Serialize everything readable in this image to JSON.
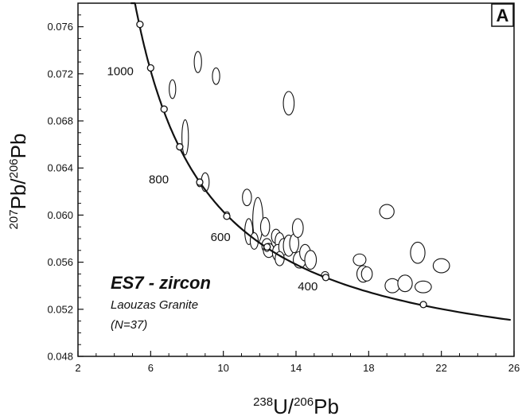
{
  "chart_data": {
    "type": "scatter",
    "panel_label": "A",
    "xlabel": {
      "sup": "238",
      "main1": "U/",
      "sup2": "206",
      "main2": "Pb"
    },
    "ylabel": {
      "sup": "207",
      "main1": "Pb/",
      "sup2": "206",
      "main2": "Pb"
    },
    "xlim": [
      2,
      26
    ],
    "ylim": [
      0.048,
      0.078
    ],
    "x_ticks": [
      2,
      6,
      10,
      14,
      18,
      22,
      26
    ],
    "y_ticks": [
      0.048,
      0.052,
      0.056,
      0.06,
      0.064,
      0.068,
      0.072,
      0.076
    ],
    "x_tick_labels": [
      "2",
      "6",
      "10",
      "14",
      "18",
      "22",
      "26"
    ],
    "y_tick_labels": [
      "0.048",
      "0.052",
      "0.056",
      "0.060",
      "0.064",
      "0.068",
      "0.072",
      "0.076"
    ],
    "annotation_title": "ES7 - zircon",
    "annotation_lines": [
      "Laouzas Granite",
      "(N=37)"
    ],
    "concordia_markers": [
      {
        "x": 5.41,
        "y": 0.0762
      },
      {
        "x": 6.0,
        "y": 0.0725
      },
      {
        "x": 6.74,
        "y": 0.069
      },
      {
        "x": 7.6,
        "y": 0.0658
      },
      {
        "x": 8.7,
        "y": 0.0628
      },
      {
        "x": 10.19,
        "y": 0.0599
      },
      {
        "x": 12.41,
        "y": 0.0573
      },
      {
        "x": 15.64,
        "y": 0.0547
      },
      {
        "x": 21.01,
        "y": 0.0524
      }
    ],
    "age_labels": [
      {
        "text": "1000",
        "x": 3.6,
        "y": 0.0719
      },
      {
        "text": "800",
        "x": 5.9,
        "y": 0.0627
      },
      {
        "text": "600",
        "x": 9.3,
        "y": 0.0578
      },
      {
        "text": "400",
        "x": 14.1,
        "y": 0.0536
      }
    ],
    "ellipses": [
      {
        "x": 8.6,
        "y": 0.073,
        "rx": 0.2,
        "ry": 0.0009
      },
      {
        "x": 9.6,
        "y": 0.0718,
        "rx": 0.2,
        "ry": 0.0007
      },
      {
        "x": 7.2,
        "y": 0.0707,
        "rx": 0.18,
        "ry": 0.0008
      },
      {
        "x": 13.6,
        "y": 0.0695,
        "rx": 0.3,
        "ry": 0.001
      },
      {
        "x": 7.9,
        "y": 0.0666,
        "rx": 0.18,
        "ry": 0.0015
      },
      {
        "x": 9.0,
        "y": 0.0628,
        "rx": 0.22,
        "ry": 0.0008
      },
      {
        "x": 11.3,
        "y": 0.0615,
        "rx": 0.25,
        "ry": 0.0007
      },
      {
        "x": 11.9,
        "y": 0.0596,
        "rx": 0.28,
        "ry": 0.0019
      },
      {
        "x": 11.4,
        "y": 0.0586,
        "rx": 0.22,
        "ry": 0.0011
      },
      {
        "x": 12.3,
        "y": 0.059,
        "rx": 0.25,
        "ry": 0.0008
      },
      {
        "x": 11.7,
        "y": 0.0578,
        "rx": 0.22,
        "ry": 0.0007
      },
      {
        "x": 12.4,
        "y": 0.0574,
        "rx": 0.28,
        "ry": 0.0006
      },
      {
        "x": 12.5,
        "y": 0.057,
        "rx": 0.3,
        "ry": 0.0006
      },
      {
        "x": 12.9,
        "y": 0.0582,
        "rx": 0.25,
        "ry": 0.0006
      },
      {
        "x": 13.1,
        "y": 0.0578,
        "rx": 0.25,
        "ry": 0.0007
      },
      {
        "x": 13.0,
        "y": 0.0568,
        "rx": 0.3,
        "ry": 0.0007
      },
      {
        "x": 13.3,
        "y": 0.0573,
        "rx": 0.25,
        "ry": 0.0007
      },
      {
        "x": 13.6,
        "y": 0.0574,
        "rx": 0.3,
        "ry": 0.0009
      },
      {
        "x": 13.9,
        "y": 0.0576,
        "rx": 0.25,
        "ry": 0.0008
      },
      {
        "x": 13.1,
        "y": 0.0563,
        "rx": 0.25,
        "ry": 0.0006
      },
      {
        "x": 14.1,
        "y": 0.0589,
        "rx": 0.3,
        "ry": 0.0008
      },
      {
        "x": 14.2,
        "y": 0.0562,
        "rx": 0.35,
        "ry": 0.0007
      },
      {
        "x": 14.5,
        "y": 0.0568,
        "rx": 0.3,
        "ry": 0.0007
      },
      {
        "x": 14.8,
        "y": 0.0562,
        "rx": 0.32,
        "ry": 0.0008
      },
      {
        "x": 17.5,
        "y": 0.0562,
        "rx": 0.35,
        "ry": 0.0005
      },
      {
        "x": 17.7,
        "y": 0.055,
        "rx": 0.35,
        "ry": 0.0007
      },
      {
        "x": 17.9,
        "y": 0.055,
        "rx": 0.3,
        "ry": 0.0006
      },
      {
        "x": 19.0,
        "y": 0.0603,
        "rx": 0.4,
        "ry": 0.0006
      },
      {
        "x": 19.3,
        "y": 0.054,
        "rx": 0.4,
        "ry": 0.0006
      },
      {
        "x": 20.0,
        "y": 0.0542,
        "rx": 0.4,
        "ry": 0.0007
      },
      {
        "x": 20.7,
        "y": 0.0568,
        "rx": 0.4,
        "ry": 0.0009
      },
      {
        "x": 21.0,
        "y": 0.0539,
        "rx": 0.45,
        "ry": 0.0005
      },
      {
        "x": 22.0,
        "y": 0.0557,
        "rx": 0.45,
        "ry": 0.0006
      },
      {
        "x": 15.6,
        "y": 0.0549,
        "rx": 0.2,
        "ry": 0.0003
      },
      {
        "x": 10.2,
        "y": 0.06,
        "rx": 0.15,
        "ry": 0.0003
      },
      {
        "x": 8.7,
        "y": 0.0627,
        "rx": 0.15,
        "ry": 0.0003
      },
      {
        "x": 12.4,
        "y": 0.0572,
        "rx": 0.15,
        "ry": 0.0003
      }
    ]
  }
}
